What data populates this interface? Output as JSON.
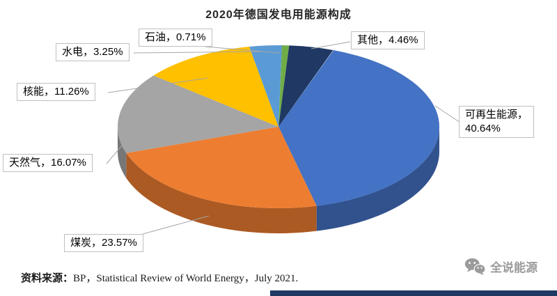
{
  "title": "2020年德国发电用能源构成",
  "chart_data": {
    "type": "pie",
    "style": "3d-pie",
    "title": "2020年德国发电用能源构成",
    "categories": [
      "可再生能源",
      "煤炭",
      "天然气",
      "核能",
      "水电",
      "石油",
      "其他"
    ],
    "values": [
      40.64,
      23.57,
      16.07,
      11.26,
      3.25,
      0.71,
      4.46
    ],
    "unit": "%",
    "colors": [
      "#4472C4",
      "#ED7D31",
      "#A5A5A5",
      "#FFC000",
      "#5B9BD5",
      "#70AD47",
      "#1F3864"
    ],
    "start_angle_deg": 20,
    "legend": "none",
    "labels": [
      "可再生能源，40.64%",
      "煤炭，23.57%",
      "天然气，16.07%",
      "核能，11.26%",
      "水电，3.25%",
      "石油，0.71%",
      "其他，4.46%"
    ]
  },
  "callouts": {
    "oil": "石油，0.71%",
    "other": "其他，4.46%",
    "hydro": "水电，3.25%",
    "nuclear": "核能，11.26%",
    "gas": "天然气，16.07%",
    "coal": "煤炭，23.57%",
    "renewables_line1": "可再生能源，",
    "renewables_line2": "40.64%"
  },
  "footer": {
    "source_label": "资料来源：",
    "source_text": "BP，Statistical Review of World Energy，July 2021.",
    "brand": "全说能源"
  }
}
